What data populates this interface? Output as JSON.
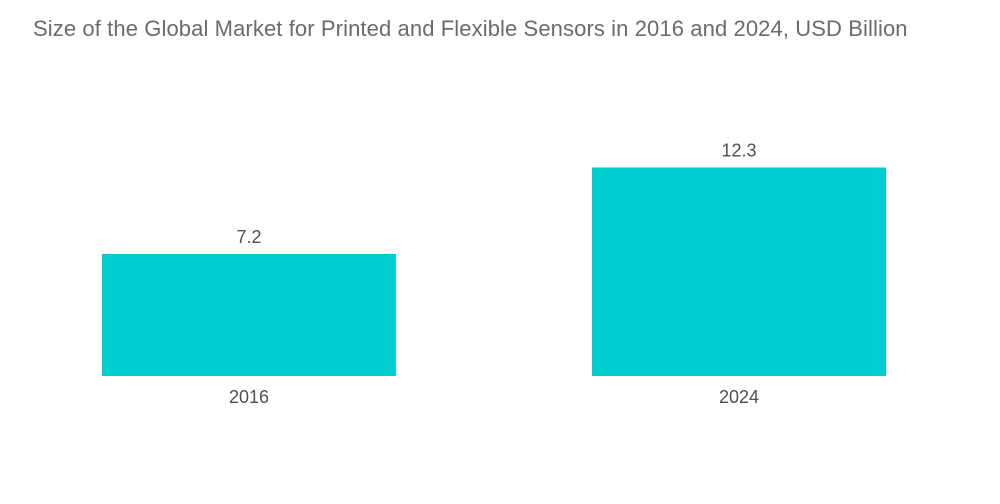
{
  "chart_data": {
    "type": "bar",
    "title": "Size of the Global Market for Printed and Flexible Sensors in 2016 and 2024, USD Billion",
    "categories": [
      "2016",
      "2024"
    ],
    "values": [
      7.2,
      12.3
    ],
    "value_labels": [
      "7.2",
      "12.3"
    ],
    "xlabel": "",
    "ylabel": "",
    "ylim": [
      0,
      15
    ],
    "grid": false,
    "legend": "none",
    "bar_color": "#00CDD0"
  }
}
